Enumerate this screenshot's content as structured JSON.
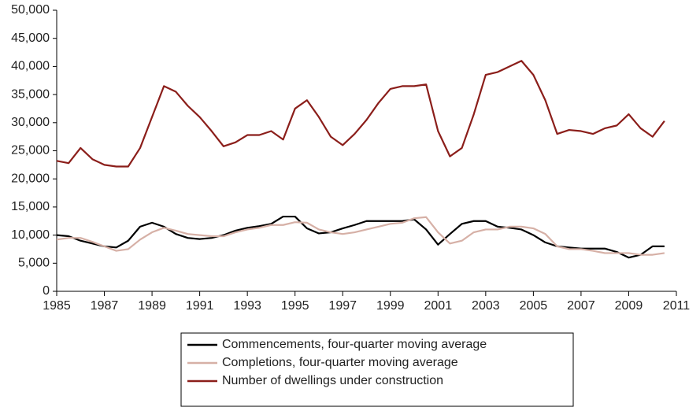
{
  "chart_data": {
    "type": "line",
    "x": [
      1985,
      1985.5,
      1986,
      1986.5,
      1987,
      1987.5,
      1988,
      1988.5,
      1989,
      1989.5,
      1990,
      1990.5,
      1991,
      1991.5,
      1992,
      1992.5,
      1993,
      1993.5,
      1994,
      1994.5,
      1995,
      1995.5,
      1996,
      1996.5,
      1997,
      1997.5,
      1998,
      1998.5,
      1999,
      1999.5,
      2000,
      2000.5,
      2001,
      2001.5,
      2002,
      2002.5,
      2003,
      2003.5,
      2004,
      2004.5,
      2005,
      2005.5,
      2006,
      2006.5,
      2007,
      2007.5,
      2008,
      2008.5,
      2009,
      2009.5,
      2010,
      2010.5
    ],
    "series": [
      {
        "name": "Commencements, four-quarter moving average",
        "color": "#000000",
        "values": [
          10000,
          9800,
          9000,
          8500,
          8000,
          7800,
          9000,
          11500,
          12200,
          11500,
          10200,
          9500,
          9300,
          9500,
          10000,
          10800,
          11300,
          11600,
          12000,
          13300,
          13300,
          11200,
          10300,
          10500,
          11200,
          11800,
          12500,
          12500,
          12500,
          12500,
          12800,
          11000,
          8300,
          10200,
          12000,
          12500,
          12500,
          11500,
          11300,
          11000,
          10000,
          8700,
          8000,
          7800,
          7600,
          7600,
          7600,
          7000,
          6000,
          6500,
          8000,
          8000
        ]
      },
      {
        "name": "Completions, four-quarter moving average",
        "color": "#d6b0a6",
        "values": [
          9200,
          9500,
          9500,
          8800,
          8000,
          7200,
          7500,
          9200,
          10500,
          11300,
          10800,
          10200,
          10000,
          9800,
          9800,
          10500,
          11000,
          11300,
          11800,
          11800,
          12300,
          12200,
          11000,
          10500,
          10200,
          10500,
          11000,
          11500,
          12000,
          12200,
          13000,
          13200,
          10500,
          8500,
          9000,
          10500,
          11000,
          11000,
          11500,
          11500,
          11200,
          10200,
          8000,
          7500,
          7500,
          7200,
          6800,
          6800,
          6800,
          6500,
          6500,
          6800
        ]
      },
      {
        "name": "Number of dwellings under construction",
        "color": "#8b1e1a",
        "values": [
          23200,
          22800,
          25500,
          23500,
          22500,
          22200,
          22200,
          25500,
          31000,
          36500,
          35500,
          33000,
          31000,
          28500,
          25800,
          26500,
          27800,
          27800,
          28500,
          27000,
          32500,
          34000,
          31000,
          27500,
          26000,
          28000,
          30500,
          33500,
          36000,
          36500,
          36500,
          36800,
          28500,
          24000,
          25500,
          31500,
          38500,
          39000,
          40000,
          41000,
          38500,
          34000,
          28000,
          28700,
          28500,
          28000,
          29000,
          29500,
          31500,
          29000,
          27500,
          30300
        ]
      }
    ],
    "xlim": [
      1985,
      2011
    ],
    "xticks": [
      1985,
      1987,
      1989,
      1991,
      1993,
      1995,
      1997,
      1999,
      2001,
      2003,
      2005,
      2007,
      2009,
      2011
    ],
    "ylim": [
      0,
      50000
    ],
    "yticks": [
      0,
      {
        "value": 5000,
        "label": "5,000"
      },
      {
        "value": 10000,
        "label": "10,000"
      },
      {
        "value": 15000,
        "label": "15,000"
      },
      {
        "value": 20000,
        "label": "20,000"
      },
      {
        "value": 25000,
        "label": "25,000"
      },
      {
        "value": 30000,
        "label": "30,000"
      },
      {
        "value": 35000,
        "label": "35,000"
      },
      {
        "value": 40000,
        "label": "40,000"
      },
      {
        "value": 45000,
        "label": "45,000"
      },
      {
        "value": 50000,
        "label": "50,000"
      }
    ],
    "grid": false,
    "legend": "bottom"
  }
}
